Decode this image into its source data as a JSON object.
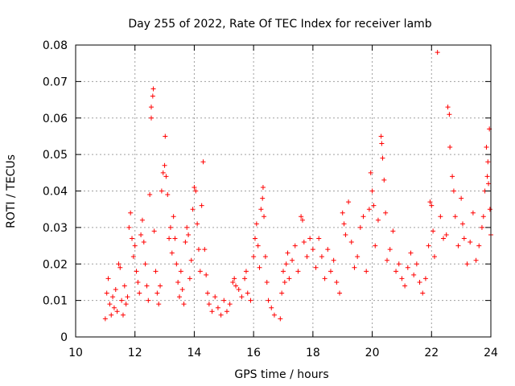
{
  "chart_data": {
    "type": "scatter",
    "title": "Day 255 of 2022, Rate Of TEC Index for receiver lamb",
    "xlabel": "GPS time / hours",
    "ylabel": "ROTI / TECUs",
    "xlim": [
      10,
      24
    ],
    "ylim": [
      0,
      0.08
    ],
    "x_ticks": [
      "10",
      "12",
      "14",
      "16",
      "18",
      "20",
      "22",
      "24"
    ],
    "y_ticks": [
      "0",
      "0.01",
      "0.02",
      "0.03",
      "0.04",
      "0.05",
      "0.06",
      "0.07",
      "0.08"
    ],
    "grid": true,
    "legend": "none",
    "marker": "+",
    "color": "#ff0000",
    "series": [
      {
        "points": [
          [
            11.0,
            0.005
          ],
          [
            11.05,
            0.012
          ],
          [
            11.1,
            0.016
          ],
          [
            11.15,
            0.009
          ],
          [
            11.2,
            0.006
          ],
          [
            11.25,
            0.011
          ],
          [
            11.3,
            0.008
          ],
          [
            11.35,
            0.013
          ],
          [
            11.4,
            0.007
          ],
          [
            11.45,
            0.02
          ],
          [
            11.5,
            0.019
          ],
          [
            11.55,
            0.01
          ],
          [
            11.6,
            0.006
          ],
          [
            11.65,
            0.014
          ],
          [
            11.7,
            0.009
          ],
          [
            11.75,
            0.011
          ],
          [
            11.8,
            0.03
          ],
          [
            11.85,
            0.034
          ],
          [
            11.9,
            0.027
          ],
          [
            11.95,
            0.022
          ],
          [
            12.0,
            0.025
          ],
          [
            12.05,
            0.018
          ],
          [
            12.1,
            0.015
          ],
          [
            12.15,
            0.012
          ],
          [
            12.2,
            0.028
          ],
          [
            12.25,
            0.032
          ],
          [
            12.3,
            0.026
          ],
          [
            12.35,
            0.02
          ],
          [
            12.4,
            0.014
          ],
          [
            12.45,
            0.01
          ],
          [
            12.5,
            0.039
          ],
          [
            12.55,
            0.06
          ],
          [
            12.55,
            0.063
          ],
          [
            12.6,
            0.066
          ],
          [
            12.62,
            0.068
          ],
          [
            12.65,
            0.029
          ],
          [
            12.7,
            0.018
          ],
          [
            12.75,
            0.012
          ],
          [
            12.8,
            0.009
          ],
          [
            12.85,
            0.014
          ],
          [
            12.9,
            0.04
          ],
          [
            12.95,
            0.045
          ],
          [
            13.0,
            0.047
          ],
          [
            13.02,
            0.055
          ],
          [
            13.05,
            0.044
          ],
          [
            13.1,
            0.039
          ],
          [
            13.15,
            0.027
          ],
          [
            13.2,
            0.03
          ],
          [
            13.25,
            0.023
          ],
          [
            13.3,
            0.033
          ],
          [
            13.35,
            0.027
          ],
          [
            13.4,
            0.02
          ],
          [
            13.45,
            0.015
          ],
          [
            13.5,
            0.011
          ],
          [
            13.55,
            0.018
          ],
          [
            13.6,
            0.013
          ],
          [
            13.65,
            0.009
          ],
          [
            13.7,
            0.026
          ],
          [
            13.75,
            0.03
          ],
          [
            13.8,
            0.028
          ],
          [
            13.85,
            0.016
          ],
          [
            13.9,
            0.021
          ],
          [
            13.95,
            0.035
          ],
          [
            14.0,
            0.041
          ],
          [
            14.05,
            0.04
          ],
          [
            14.1,
            0.031
          ],
          [
            14.15,
            0.024
          ],
          [
            14.2,
            0.018
          ],
          [
            14.25,
            0.036
          ],
          [
            14.3,
            0.048
          ],
          [
            14.35,
            0.024
          ],
          [
            14.4,
            0.017
          ],
          [
            14.45,
            0.012
          ],
          [
            14.5,
            0.009
          ],
          [
            14.6,
            0.007
          ],
          [
            14.7,
            0.011
          ],
          [
            14.8,
            0.008
          ],
          [
            14.9,
            0.006
          ],
          [
            15.0,
            0.01
          ],
          [
            15.1,
            0.007
          ],
          [
            15.2,
            0.009
          ],
          [
            15.3,
            0.015
          ],
          [
            15.35,
            0.016
          ],
          [
            15.4,
            0.014
          ],
          [
            15.5,
            0.013
          ],
          [
            15.6,
            0.011
          ],
          [
            15.7,
            0.016
          ],
          [
            15.75,
            0.018
          ],
          [
            15.8,
            0.012
          ],
          [
            15.9,
            0.01
          ],
          [
            16.0,
            0.022
          ],
          [
            16.05,
            0.027
          ],
          [
            16.1,
            0.031
          ],
          [
            16.15,
            0.025
          ],
          [
            16.2,
            0.019
          ],
          [
            16.25,
            0.035
          ],
          [
            16.3,
            0.038
          ],
          [
            16.32,
            0.041
          ],
          [
            16.35,
            0.033
          ],
          [
            16.4,
            0.022
          ],
          [
            16.45,
            0.015
          ],
          [
            16.5,
            0.01
          ],
          [
            16.6,
            0.008
          ],
          [
            16.7,
            0.006
          ],
          [
            16.9,
            0.005
          ],
          [
            16.95,
            0.012
          ],
          [
            17.0,
            0.018
          ],
          [
            17.05,
            0.015
          ],
          [
            17.1,
            0.02
          ],
          [
            17.15,
            0.023
          ],
          [
            17.2,
            0.016
          ],
          [
            17.3,
            0.021
          ],
          [
            17.4,
            0.025
          ],
          [
            17.5,
            0.018
          ],
          [
            17.6,
            0.033
          ],
          [
            17.65,
            0.032
          ],
          [
            17.7,
            0.026
          ],
          [
            17.8,
            0.022
          ],
          [
            17.9,
            0.027
          ],
          [
            18.0,
            0.024
          ],
          [
            18.1,
            0.019
          ],
          [
            18.2,
            0.027
          ],
          [
            18.3,
            0.022
          ],
          [
            18.4,
            0.016
          ],
          [
            18.5,
            0.024
          ],
          [
            18.6,
            0.018
          ],
          [
            18.7,
            0.021
          ],
          [
            18.8,
            0.015
          ],
          [
            18.9,
            0.012
          ],
          [
            19.0,
            0.034
          ],
          [
            19.05,
            0.031
          ],
          [
            19.1,
            0.028
          ],
          [
            19.2,
            0.037
          ],
          [
            19.3,
            0.026
          ],
          [
            19.4,
            0.019
          ],
          [
            19.5,
            0.022
          ],
          [
            19.6,
            0.03
          ],
          [
            19.7,
            0.033
          ],
          [
            19.8,
            0.018
          ],
          [
            19.9,
            0.035
          ],
          [
            19.95,
            0.045
          ],
          [
            20.0,
            0.04
          ],
          [
            20.05,
            0.036
          ],
          [
            20.1,
            0.025
          ],
          [
            20.2,
            0.032
          ],
          [
            20.3,
            0.055
          ],
          [
            20.32,
            0.053
          ],
          [
            20.35,
            0.049
          ],
          [
            20.4,
            0.043
          ],
          [
            20.45,
            0.034
          ],
          [
            20.5,
            0.021
          ],
          [
            20.6,
            0.024
          ],
          [
            20.7,
            0.029
          ],
          [
            20.8,
            0.018
          ],
          [
            20.9,
            0.02
          ],
          [
            21.0,
            0.016
          ],
          [
            21.1,
            0.014
          ],
          [
            21.2,
            0.019
          ],
          [
            21.3,
            0.023
          ],
          [
            21.4,
            0.017
          ],
          [
            21.5,
            0.02
          ],
          [
            21.6,
            0.015
          ],
          [
            21.7,
            0.012
          ],
          [
            21.8,
            0.016
          ],
          [
            21.9,
            0.025
          ],
          [
            21.95,
            0.037
          ],
          [
            22.0,
            0.036
          ],
          [
            22.05,
            0.029
          ],
          [
            22.1,
            0.022
          ],
          [
            22.2,
            0.078
          ],
          [
            22.3,
            0.033
          ],
          [
            22.4,
            0.027
          ],
          [
            22.5,
            0.028
          ],
          [
            22.55,
            0.063
          ],
          [
            22.6,
            0.061
          ],
          [
            22.62,
            0.052
          ],
          [
            22.7,
            0.044
          ],
          [
            22.75,
            0.04
          ],
          [
            22.8,
            0.033
          ],
          [
            22.9,
            0.025
          ],
          [
            23.0,
            0.038
          ],
          [
            23.05,
            0.031
          ],
          [
            23.1,
            0.027
          ],
          [
            23.2,
            0.02
          ],
          [
            23.3,
            0.026
          ],
          [
            23.4,
            0.034
          ],
          [
            23.5,
            0.021
          ],
          [
            23.6,
            0.025
          ],
          [
            23.7,
            0.03
          ],
          [
            23.75,
            0.033
          ],
          [
            23.8,
            0.04
          ],
          [
            23.85,
            0.052
          ],
          [
            23.88,
            0.044
          ],
          [
            23.9,
            0.048
          ],
          [
            23.92,
            0.042
          ],
          [
            23.95,
            0.057
          ],
          [
            23.97,
            0.035
          ],
          [
            24.0,
            0.028
          ]
        ]
      }
    ]
  }
}
